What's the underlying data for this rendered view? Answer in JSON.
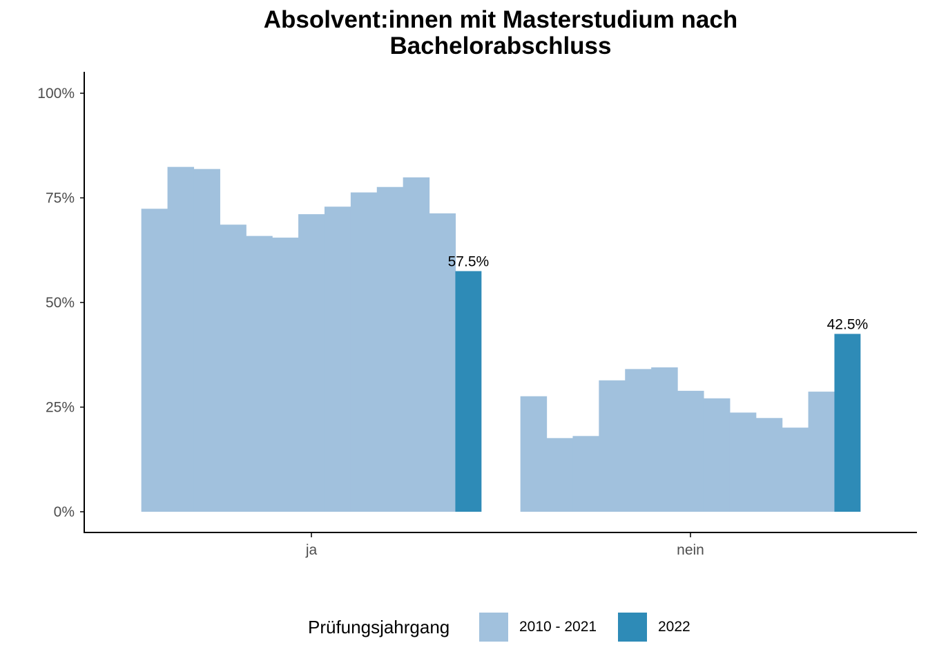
{
  "chart_data": {
    "type": "bar",
    "title": "Absolvent:innen mit Masterstudium nach Bachelorabschluss",
    "title_lines": [
      "Absolvent:innen mit Masterstudium nach",
      "Bachelorabschluss"
    ],
    "categories": [
      "ja",
      "nein"
    ],
    "ylim": [
      0,
      105
    ],
    "yticks": [
      0,
      25,
      50,
      75,
      100
    ],
    "ytick_labels": [
      "0%",
      "25%",
      "50%",
      "75%",
      "100%"
    ],
    "grid": false,
    "legend_position": "bottom",
    "legend_title": "Prüfungsjahrgang",
    "series": [
      {
        "name": "2010 - 2021",
        "color": "#a1c1dd",
        "values": {
          "ja": [
            72.4,
            82.4,
            81.9,
            68.6,
            65.9,
            65.5,
            71.1,
            72.9,
            76.3,
            77.6,
            79.9,
            71.3
          ],
          "nein": [
            27.6,
            17.6,
            18.1,
            31.4,
            34.1,
            34.5,
            28.9,
            27.1,
            23.7,
            22.4,
            20.1,
            28.7
          ]
        }
      },
      {
        "name": "2022",
        "color": "#2e8bb7",
        "values": {
          "ja": [
            57.5
          ],
          "nein": [
            42.5
          ]
        },
        "labels": {
          "ja": "57.5%",
          "nein": "42.5%"
        }
      }
    ]
  }
}
